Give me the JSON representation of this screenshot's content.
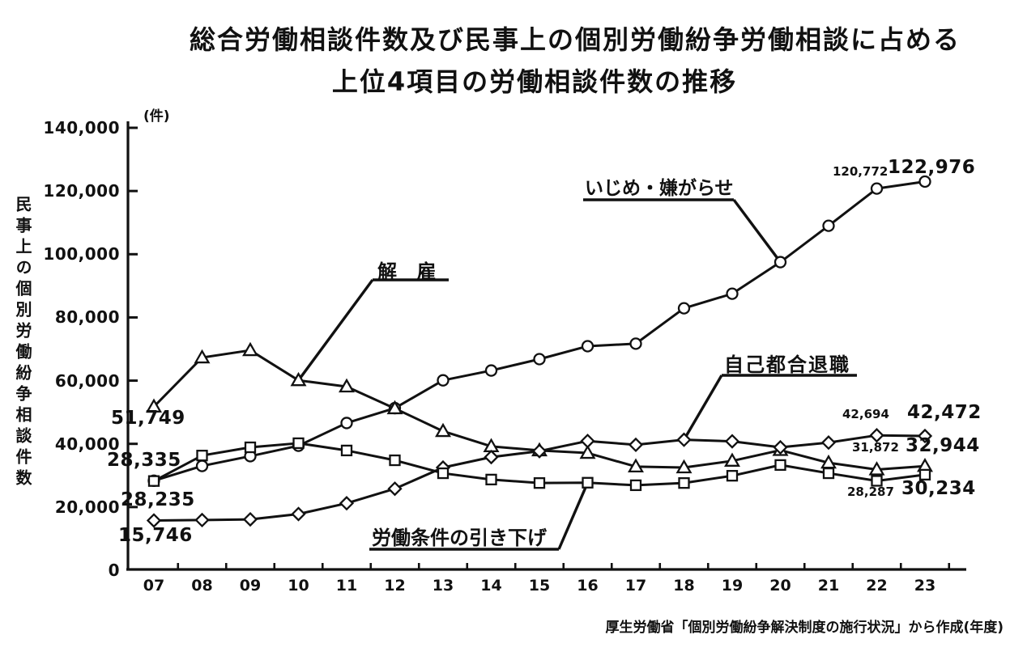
{
  "title": {
    "line1": "総合労働相談件数及び民事上の個別労働紛争労働相談に占める",
    "line2": "上位4項目の労働相談件数の推移"
  },
  "y_axis": {
    "unit_label": "(件)",
    "axis_title": "民事上の個別労働紛争相談件数",
    "tick_labels": [
      "140,000",
      "120,000",
      "100,000",
      "80,000",
      "60,000",
      "40,000",
      "20,000",
      "0"
    ],
    "tick_step": 20000,
    "max": 140000
  },
  "x_axis": {
    "tick_labels": [
      "07",
      "08",
      "09",
      "10",
      "11",
      "12",
      "13",
      "14",
      "15",
      "16",
      "17",
      "18",
      "19",
      "20",
      "21",
      "22",
      "23"
    ],
    "unit": "年度"
  },
  "source_note": "厚生労働省「個別労働紛争解決制度の施行状況」から作成(年度)",
  "annotations": [
    {
      "text": "解 雇"
    },
    {
      "text": "いじめ・嫌がらせ"
    },
    {
      "text": "自己都合退職"
    },
    {
      "text": "労働条件の引き下げ"
    }
  ],
  "point_labels": [
    {
      "text": "51,749"
    },
    {
      "text": "28,335"
    },
    {
      "text": "28,235"
    },
    {
      "text": "15,746"
    },
    {
      "text": "120,772"
    },
    {
      "text": "122,976"
    },
    {
      "text": "42,694"
    },
    {
      "text": "42,472"
    },
    {
      "text": "31,872"
    },
    {
      "text": "32,944"
    },
    {
      "text": "28,287"
    },
    {
      "text": "30,234"
    }
  ],
  "chart_data": {
    "type": "line",
    "title": "総合労働相談件数及び民事上の個別労働紛争労働相談に占める上位4項目の労働相談件数の推移",
    "xlabel": "年度",
    "ylabel": "民事上の個別労働紛争相談件数(件)",
    "x": [
      "07",
      "08",
      "09",
      "10",
      "11",
      "12",
      "13",
      "14",
      "15",
      "16",
      "17",
      "18",
      "19",
      "20",
      "21",
      "22",
      "23"
    ],
    "ylim": [
      0,
      140000
    ],
    "grid": false,
    "legend_position": "inline-annotations",
    "line_color": "#111111",
    "marker_fill": "#ffffff",
    "series": [
      {
        "name": "いじめ・嫌がらせ",
        "id": "bullying-harassment",
        "marker": "circle",
        "values": [
          28335,
          33000,
          36100,
          39400,
          46600,
          51300,
          60100,
          63200,
          66800,
          70900,
          71700,
          82900,
          87500,
          97500,
          109000,
          120772,
          122976
        ]
      },
      {
        "name": "解雇",
        "id": "dismissal",
        "marker": "triangle",
        "values": [
          51749,
          67300,
          69600,
          60100,
          58100,
          51200,
          44000,
          39200,
          37900,
          37100,
          32800,
          32500,
          34600,
          38000,
          34000,
          31872,
          32944
        ]
      },
      {
        "name": "自己都合退職",
        "id": "voluntary-resignation",
        "marker": "diamond",
        "values": [
          15746,
          15900,
          16100,
          17800,
          21200,
          25800,
          32500,
          35800,
          37700,
          40900,
          39700,
          41300,
          40800,
          38900,
          40400,
          42694,
          42472
        ]
      },
      {
        "name": "労働条件の引き下げ",
        "id": "working-conditions-reduction",
        "marker": "square",
        "values": [
          28235,
          36300,
          38900,
          40200,
          37900,
          34800,
          30700,
          28700,
          27600,
          27700,
          26900,
          27600,
          29900,
          33300,
          30700,
          28287,
          30234
        ]
      }
    ]
  }
}
